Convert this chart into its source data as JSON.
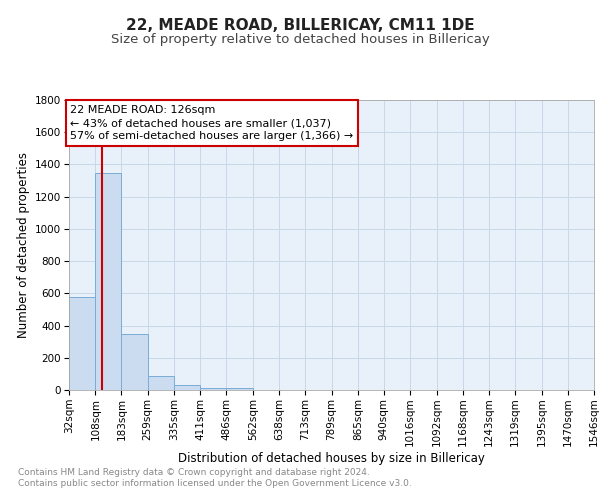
{
  "title": "22, MEADE ROAD, BILLERICAY, CM11 1DE",
  "subtitle": "Size of property relative to detached houses in Billericay",
  "xlabel": "Distribution of detached houses by size in Billericay",
  "ylabel": "Number of detached properties",
  "bin_edges": [
    32,
    108,
    183,
    259,
    335,
    411,
    486,
    562,
    638,
    713,
    789,
    865,
    940,
    1016,
    1092,
    1168,
    1243,
    1319,
    1395,
    1470,
    1546
  ],
  "bin_heights": [
    575,
    1350,
    350,
    90,
    30,
    15,
    15,
    0,
    0,
    0,
    0,
    0,
    0,
    0,
    0,
    0,
    0,
    0,
    0,
    0
  ],
  "bar_color": "#ccdcf0",
  "bar_edge_color": "#7aacd6",
  "property_size": 126,
  "red_line_color": "#cc0000",
  "annotation_text": "22 MEADE ROAD: 126sqm\n← 43% of detached houses are smaller (1,037)\n57% of semi-detached houses are larger (1,366) →",
  "annotation_box_color": "#cc0000",
  "ylim": [
    0,
    1800
  ],
  "yticks": [
    0,
    200,
    400,
    600,
    800,
    1000,
    1200,
    1400,
    1600,
    1800
  ],
  "grid_color": "#c8d8e8",
  "background_color": "#e8f0fa",
  "footer_text": "Contains HM Land Registry data © Crown copyright and database right 2024.\nContains public sector information licensed under the Open Government Licence v3.0.",
  "title_fontsize": 11,
  "subtitle_fontsize": 9.5,
  "axis_label_fontsize": 8.5,
  "tick_fontsize": 7.5,
  "annotation_fontsize": 8,
  "footer_fontsize": 6.5
}
